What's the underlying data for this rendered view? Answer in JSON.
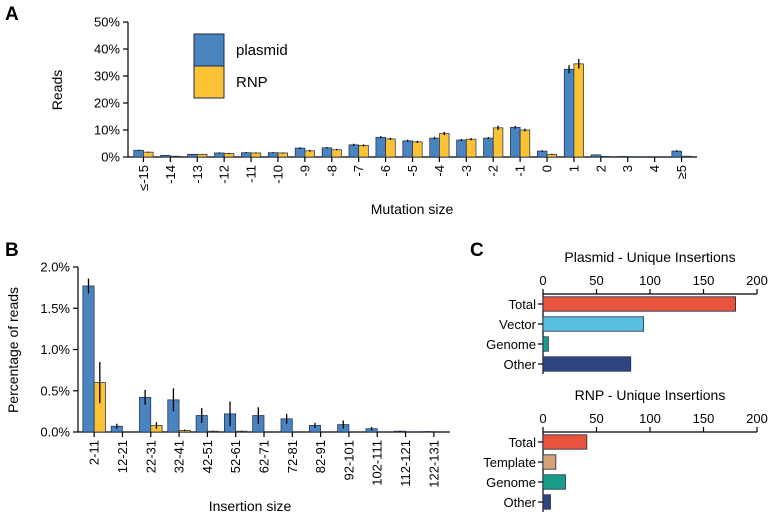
{
  "panels": {
    "a": "A",
    "b": "B",
    "c": "C"
  },
  "colors": {
    "plasmid": "#4a84c0",
    "rnp": "#fcc235",
    "edge": "#1a2a44",
    "total": "#e8533c",
    "vector": "#5bbfe0",
    "genome": "#1a9e8a",
    "template": "#d4a37a",
    "other": "#2f4480"
  },
  "chart_data": [
    {
      "type": "bar",
      "title": "",
      "xlabel": "Mutation size",
      "ylabel": "Reads",
      "ylim": [
        0,
        50
      ],
      "yticks": [
        0,
        10,
        20,
        30,
        40,
        50
      ],
      "ytick_labels": [
        "0%",
        "10%",
        "20%",
        "30%",
        "40%",
        "50%"
      ],
      "categories": [
        "≤-15",
        "-14",
        "-13",
        "-12",
        "-11",
        "-10",
        "-9",
        "-8",
        "-7",
        "-6",
        "-5",
        "-4",
        "-3",
        "-2",
        "-1",
        "0",
        "1",
        "2",
        "3",
        "4",
        "≥5"
      ],
      "series": [
        {
          "name": "plasmid",
          "values": [
            2.5,
            0.6,
            1.0,
            1.5,
            1.6,
            1.6,
            3.3,
            3.4,
            4.5,
            7.3,
            6.0,
            7.0,
            6.3,
            7.0,
            11.0,
            2.2,
            32.5,
            0.8,
            0.2,
            0.1,
            2.2
          ],
          "errors": [
            0.2,
            0.1,
            0.1,
            0.2,
            0.2,
            0.2,
            0.3,
            0.3,
            0.4,
            0.5,
            0.4,
            0.5,
            0.4,
            0.4,
            0.5,
            0.3,
            1.5,
            0.1,
            0.05,
            0.05,
            0.3
          ]
        },
        {
          "name": "RNP",
          "values": [
            1.8,
            0.3,
            1.0,
            1.3,
            1.5,
            1.5,
            2.3,
            2.7,
            4.3,
            6.7,
            5.6,
            8.7,
            6.6,
            10.8,
            10.0,
            1.0,
            34.5,
            0.2,
            0.1,
            0.1,
            0.3
          ],
          "errors": [
            0.2,
            0.1,
            0.1,
            0.2,
            0.2,
            0.2,
            0.3,
            0.3,
            0.4,
            0.4,
            0.4,
            0.6,
            0.4,
            0.8,
            0.5,
            0.2,
            1.8,
            0.05,
            0.05,
            0.05,
            0.05
          ]
        }
      ]
    },
    {
      "type": "bar",
      "title": "",
      "xlabel": "Insertion size",
      "ylabel": "Percentage of reads",
      "ylim": [
        0,
        2.0
      ],
      "yticks": [
        0,
        0.5,
        1.0,
        1.5,
        2.0
      ],
      "ytick_labels": [
        "0.0%",
        "0.5%",
        "1.0%",
        "1.5%",
        "2.0%"
      ],
      "categories": [
        "2-11",
        "12-21",
        "22-31",
        "32-41",
        "42-51",
        "52-61",
        "62-71",
        "72-81",
        "82-91",
        "92-101",
        "102-111",
        "112-121",
        "122-131"
      ],
      "series": [
        {
          "name": "plasmid",
          "values": [
            1.77,
            0.07,
            0.42,
            0.39,
            0.2,
            0.22,
            0.2,
            0.16,
            0.08,
            0.09,
            0.04,
            0.01,
            0.005
          ],
          "errors": [
            0.09,
            0.03,
            0.09,
            0.14,
            0.09,
            0.15,
            0.1,
            0.06,
            0.03,
            0.05,
            0.02,
            0.005,
            0.003
          ]
        },
        {
          "name": "RNP",
          "values": [
            0.6,
            0.0,
            0.08,
            0.02,
            0.01,
            0.01,
            0.0,
            0.0,
            0.0,
            0.0,
            0.0,
            0.0,
            0.0
          ],
          "errors": [
            0.25,
            0.0,
            0.04,
            0.01,
            0.005,
            0.005,
            0.0,
            0.0,
            0.0,
            0.0,
            0.0,
            0.0,
            0.0
          ]
        }
      ]
    },
    {
      "type": "bar",
      "orientation": "horizontal",
      "title": "Plasmid - Unique Insertions",
      "xlim": [
        0,
        200
      ],
      "xticks": [
        0,
        50,
        100,
        150,
        200
      ],
      "categories": [
        "Total",
        "Vector",
        "Genome",
        "Other"
      ],
      "values": [
        180,
        94,
        5,
        82
      ],
      "colors": [
        "#e8533c",
        "#5bbfe0",
        "#1a9e8a",
        "#2f4480"
      ]
    },
    {
      "type": "bar",
      "orientation": "horizontal",
      "title": "RNP - Unique Insertions",
      "xlim": [
        0,
        200
      ],
      "xticks": [
        0,
        50,
        100,
        150,
        200
      ],
      "categories": [
        "Total",
        "Template",
        "Genome",
        "Other"
      ],
      "values": [
        41,
        12,
        21,
        7
      ],
      "colors": [
        "#e8533c",
        "#d4a37a",
        "#1a9e8a",
        "#2f4480"
      ]
    }
  ]
}
